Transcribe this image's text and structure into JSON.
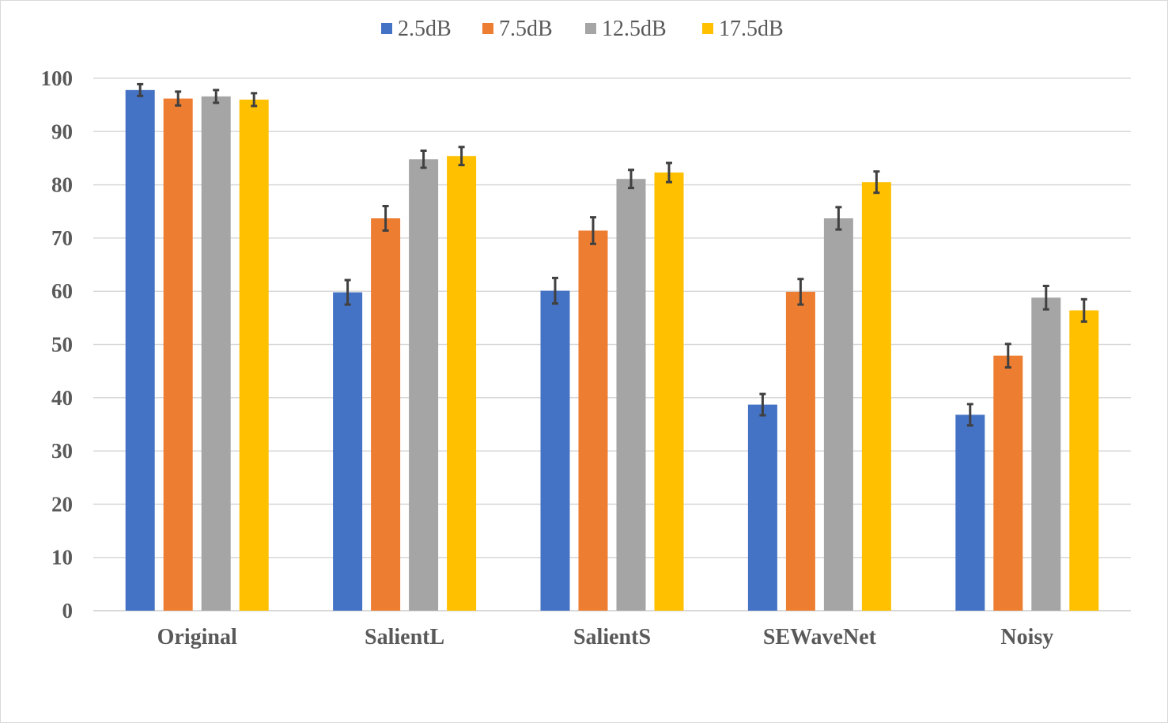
{
  "chart_data": {
    "type": "bar",
    "title": "",
    "xlabel": "",
    "ylabel": "",
    "categories": [
      "Original",
      "SalientL",
      "SalientS",
      "SEWaveNet",
      "Noisy"
    ],
    "ylim": [
      0,
      100
    ],
    "yticks": [
      0,
      10,
      20,
      30,
      40,
      50,
      60,
      70,
      80,
      90,
      100
    ],
    "grid": true,
    "legend_position": "top",
    "series": [
      {
        "name": "2.5dB",
        "color": "#4472C4",
        "values": [
          97.8,
          59.8,
          60.1,
          38.7,
          36.8
        ],
        "errors": [
          1.1,
          2.3,
          2.4,
          2.0,
          2.0
        ]
      },
      {
        "name": "7.5dB",
        "color": "#ED7D31",
        "values": [
          96.2,
          73.7,
          71.4,
          59.9,
          47.9
        ],
        "errors": [
          1.3,
          2.3,
          2.5,
          2.4,
          2.2
        ]
      },
      {
        "name": "12.5dB",
        "color": "#A5A5A5",
        "values": [
          96.6,
          84.8,
          81.1,
          73.7,
          58.8
        ],
        "errors": [
          1.2,
          1.6,
          1.7,
          2.1,
          2.2
        ]
      },
      {
        "name": "17.5dB",
        "color": "#FFC000",
        "values": [
          96.0,
          85.4,
          82.3,
          80.5,
          56.4
        ],
        "errors": [
          1.2,
          1.7,
          1.8,
          2.0,
          2.1
        ]
      }
    ]
  }
}
